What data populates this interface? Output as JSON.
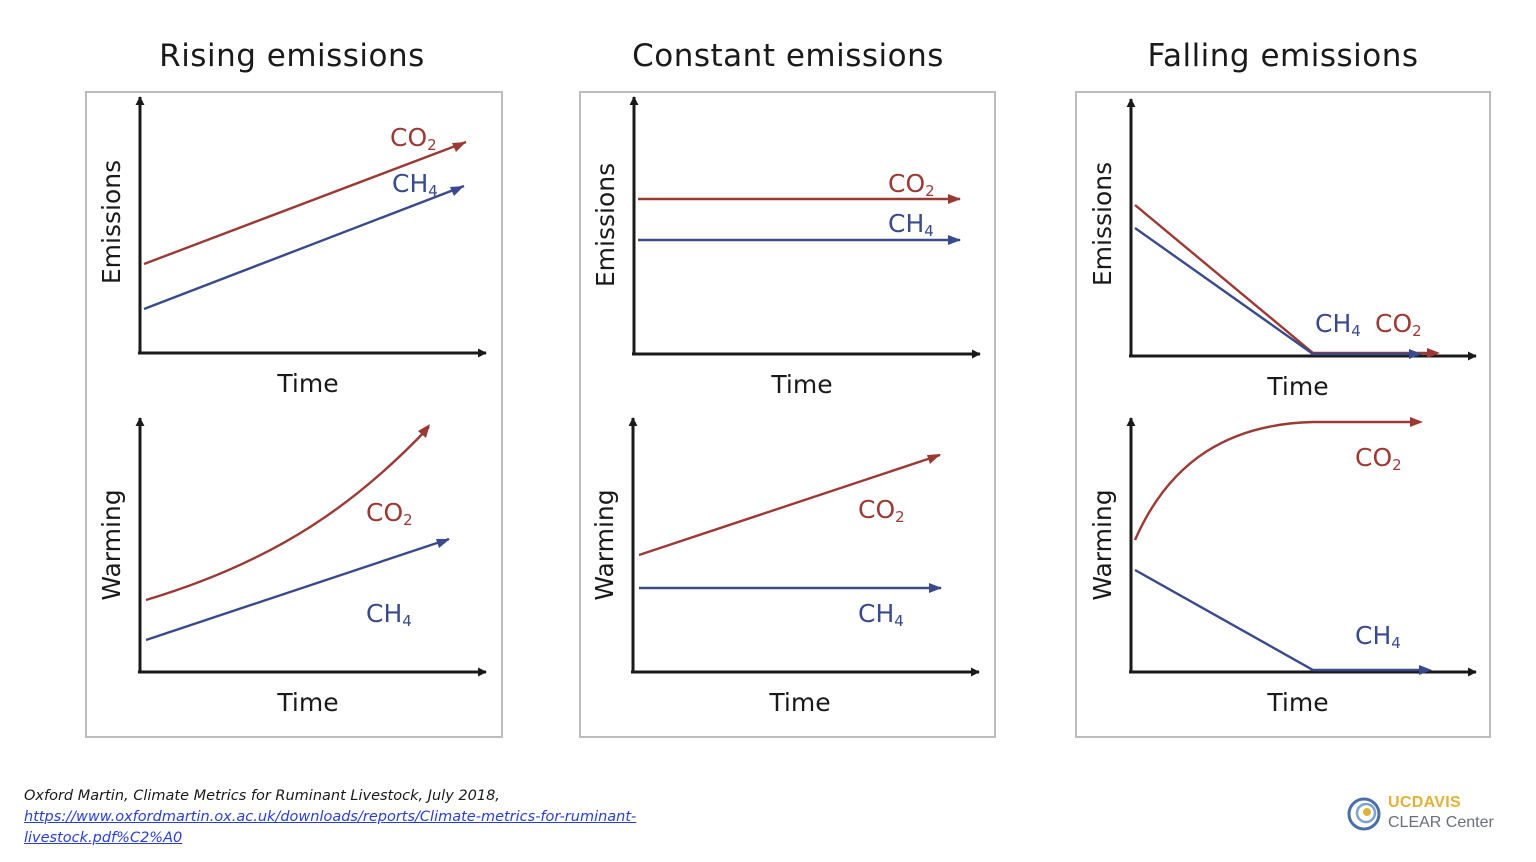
{
  "colors": {
    "co2": "#9b3a35",
    "ch4": "#3a4a8c",
    "axis": "#1a1a1a"
  },
  "panels": [
    {
      "title": "Rising emissions",
      "top": {
        "ylabel": "Emissions",
        "xlabel": "Time",
        "co2_label": "CO",
        "co2_sub": "2",
        "ch4_label": "CH",
        "ch4_sub": "4"
      },
      "bottom": {
        "ylabel": "Warming",
        "xlabel": "Time",
        "co2_label": "CO",
        "co2_sub": "2",
        "ch4_label": "CH",
        "ch4_sub": "4"
      }
    },
    {
      "title": "Constant emissions",
      "top": {
        "ylabel": "Emissions",
        "xlabel": "Time",
        "co2_label": "CO",
        "co2_sub": "2",
        "ch4_label": "CH",
        "ch4_sub": "4"
      },
      "bottom": {
        "ylabel": "Warming",
        "xlabel": "Time",
        "co2_label": "CO",
        "co2_sub": "2",
        "ch4_label": "CH",
        "ch4_sub": "4"
      }
    },
    {
      "title": "Falling emissions",
      "top": {
        "ylabel": "Emissions",
        "xlabel": "Time",
        "co2_label": "CO",
        "co2_sub": "2",
        "ch4_label": "CH",
        "ch4_sub": "4"
      },
      "bottom": {
        "ylabel": "Warming",
        "xlabel": "Time",
        "co2_label": "CO",
        "co2_sub": "2",
        "ch4_label": "CH",
        "ch4_sub": "4"
      }
    }
  ],
  "citation": {
    "line1": "Oxford Martin, Climate Metrics for Ruminant Livestock, July 2018,",
    "link_line1": "https://www.oxfordmartin.ox.ac.uk/downloads/reports/Climate-metrics-for-ruminant-",
    "link_line2": "livestock.pdf%C2%A0"
  },
  "logo": {
    "line1": "UCDAVIS",
    "line2": "CLEAR Center",
    "icon": "swirl-logo-icon"
  }
}
